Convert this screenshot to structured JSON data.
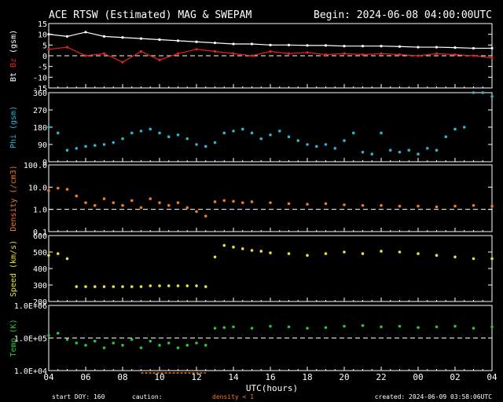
{
  "header": {
    "title": "ACE RTSW (Estimated) MAG & SWEPAM",
    "begin": "Begin: 2024-06-08 04:00:00UTC"
  },
  "footer": {
    "start_doy": "start DOY: 160",
    "caution": "caution:",
    "density_note": "density < 1",
    "created": "created: 2024-06-09 03:58:06UTC"
  },
  "colors": {
    "background": "#000000",
    "axes": "#ffffff",
    "bt": "#ffffff",
    "bz": "#e8231c",
    "phi": "#27b6d6",
    "density": "#f07a22",
    "speed": "#e8e23a",
    "temp": "#28c73c"
  },
  "chart_data": [
    {
      "type": "line",
      "panel": "mag",
      "ylabel_parts": [
        "Bt",
        "Bz",
        "(gsm)"
      ],
      "ylim": [
        -15,
        15
      ],
      "yticks": [
        "15",
        "10",
        "5",
        "0",
        "-5",
        "-10",
        "-15"
      ],
      "reference_line": 0,
      "x": [
        4,
        5,
        6,
        7,
        8,
        9,
        10,
        11,
        12,
        13,
        14,
        15,
        16,
        17,
        18,
        19,
        20,
        21,
        22,
        23,
        24,
        25,
        26,
        27,
        28
      ],
      "series": [
        {
          "name": "Bt",
          "values": [
            10,
            9,
            11,
            9,
            8.5,
            8,
            7.5,
            7,
            6.5,
            6,
            5.5,
            5.5,
            5,
            5,
            4.8,
            4.8,
            4.5,
            4.5,
            4.5,
            4.3,
            4,
            4,
            3.8,
            3.5,
            3.5
          ]
        },
        {
          "name": "Bz",
          "values": [
            3,
            4,
            0,
            1,
            -3,
            2,
            -2,
            1,
            3,
            2,
            1,
            0,
            2,
            1,
            1.5,
            0.5,
            1,
            0.5,
            1,
            0.5,
            0,
            1,
            0.5,
            0,
            -1
          ]
        }
      ]
    },
    {
      "type": "scatter",
      "panel": "phi",
      "ylabel": "Phi (gsm)",
      "ylim": [
        0,
        360
      ],
      "yticks": [
        "360",
        "270",
        "180",
        "90",
        "0"
      ],
      "x": [
        4,
        4.5,
        5,
        5.5,
        6,
        6.5,
        7,
        7.5,
        8,
        8.5,
        9,
        9.5,
        10,
        10.5,
        11,
        11.5,
        12,
        12.5,
        13,
        13.5,
        14,
        14.5,
        15,
        15.5,
        16,
        16.5,
        17,
        17.5,
        18,
        18.5,
        19,
        19.5,
        20,
        20.5,
        21,
        21.5,
        22,
        22.5,
        23,
        23.5,
        24,
        24.5,
        25,
        25.5,
        26,
        26.5,
        27,
        27.5,
        28
      ],
      "values": [
        180,
        150,
        60,
        70,
        80,
        85,
        90,
        100,
        120,
        150,
        160,
        170,
        150,
        130,
        140,
        120,
        90,
        80,
        100,
        150,
        160,
        170,
        150,
        120,
        140,
        160,
        130,
        110,
        90,
        80,
        90,
        70,
        110,
        150,
        50,
        40,
        150,
        60,
        50,
        60,
        40,
        70,
        60,
        130,
        170,
        180,
        360,
        360,
        340
      ]
    },
    {
      "type": "scatter",
      "panel": "density",
      "ylabel": "Density (/cm3)",
      "yscale": "log",
      "ylim": [
        0.1,
        100
      ],
      "yticks": [
        "100.0",
        "10.0",
        "1.0",
        "0.1"
      ],
      "reference_line": 1,
      "x": [
        4,
        4.5,
        5,
        5.5,
        6,
        6.5,
        7,
        7.5,
        8,
        8.5,
        9,
        9.5,
        10,
        10.5,
        11,
        11.5,
        12,
        12.5,
        13,
        13.5,
        14,
        14.5,
        15,
        16,
        17,
        18,
        19,
        20,
        21,
        22,
        23,
        24,
        25,
        26,
        27,
        28
      ],
      "values": [
        7,
        9,
        8,
        4,
        2,
        1.5,
        3,
        2,
        1.5,
        2.5,
        1.2,
        3,
        2,
        1.5,
        2,
        1.2,
        0.8,
        0.5,
        2.2,
        2.5,
        2.3,
        2,
        2.2,
        2,
        1.8,
        1.7,
        1.8,
        1.6,
        1.5,
        1.5,
        1.4,
        1.4,
        1.3,
        1.4,
        1.5,
        1.4
      ]
    },
    {
      "type": "scatter",
      "panel": "speed",
      "ylabel": "Speed (km/s)",
      "ylim": [
        200,
        600
      ],
      "yticks": [
        "600",
        "500",
        "400",
        "300",
        "200"
      ],
      "x": [
        4,
        4.5,
        5,
        5.5,
        6,
        6.5,
        7,
        7.5,
        8,
        8.5,
        9,
        9.5,
        10,
        10.5,
        11,
        11.5,
        12,
        12.5,
        13,
        13.5,
        14,
        14.5,
        15,
        15.5,
        16,
        17,
        18,
        19,
        20,
        21,
        22,
        23,
        24,
        25,
        26,
        27,
        28
      ],
      "values": [
        480,
        490,
        460,
        290,
        290,
        290,
        290,
        290,
        290,
        290,
        290,
        295,
        295,
        295,
        295,
        295,
        295,
        290,
        470,
        540,
        530,
        520,
        510,
        505,
        495,
        490,
        480,
        490,
        500,
        490,
        505,
        500,
        490,
        480,
        470,
        460,
        460
      ]
    },
    {
      "type": "scatter",
      "panel": "temp",
      "ylabel": "Temp (K)",
      "yscale": "log",
      "ylim": [
        10000,
        1000000
      ],
      "yticks": [
        "1.0E+06",
        "1.0E+05",
        "1.0E+04"
      ],
      "reference_line": 100000,
      "x": [
        4,
        4.5,
        5,
        5.5,
        6,
        6.5,
        7,
        7.5,
        8,
        8.5,
        9,
        9.5,
        10,
        10.5,
        11,
        11.5,
        12,
        12.5,
        13,
        13.5,
        14,
        15,
        16,
        17,
        18,
        19,
        20,
        21,
        22,
        23,
        24,
        25,
        26,
        27,
        28
      ],
      "values": [
        120000,
        140000,
        90000,
        70000,
        60000,
        80000,
        50000,
        70000,
        60000,
        90000,
        50000,
        80000,
        60000,
        70000,
        50000,
        60000,
        70000,
        60000,
        200000,
        210000,
        220000,
        200000,
        230000,
        220000,
        200000,
        210000,
        230000,
        240000,
        220000,
        230000,
        210000,
        220000,
        230000,
        200000,
        220000
      ]
    }
  ],
  "x_axis": {
    "label": "UTC(hours)",
    "range": [
      4,
      28
    ],
    "tick_labels": [
      "04",
      "06",
      "08",
      "10",
      "12",
      "14",
      "16",
      "18",
      "20",
      "22",
      "00",
      "02",
      "04"
    ],
    "low_density_spans": [
      [
        9,
        12.5
      ]
    ]
  }
}
